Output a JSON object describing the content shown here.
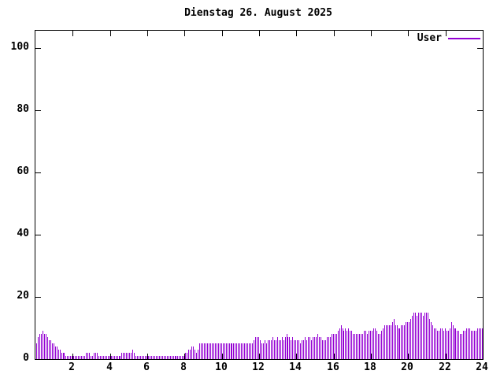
{
  "window": {
    "background": "#ffffff"
  },
  "colors": {
    "axis": "#000000",
    "text": "#000000",
    "bar": "#9400d3"
  },
  "chart_data": {
    "type": "bar",
    "style": "impulses",
    "title": "Dienstag 26. August 2025",
    "xlabel": "",
    "ylabel": "",
    "grid": false,
    "legend_position": "top-right-inside",
    "x": {
      "unit": "hour",
      "min": 0,
      "max": 24,
      "ticks": [
        2,
        4,
        6,
        8,
        10,
        12,
        14,
        16,
        18,
        20,
        22,
        24
      ]
    },
    "y": {
      "min": 0,
      "max": 105.6,
      "ticks": [
        0,
        20,
        40,
        60,
        80,
        100
      ]
    },
    "interval_minutes": 5,
    "series": [
      {
        "name": "User",
        "color": "#9400d3",
        "values": [
          5,
          7,
          8,
          8,
          9,
          8,
          8,
          7,
          6,
          6,
          5,
          5,
          4,
          4,
          3,
          3,
          2,
          2,
          2,
          1,
          1,
          1,
          1,
          1,
          1,
          1,
          1,
          1,
          1,
          1,
          1,
          1,
          2,
          2,
          2,
          1,
          1,
          2,
          2,
          2,
          1,
          1,
          1,
          1,
          1,
          1,
          1,
          1,
          1,
          1,
          1,
          1,
          1,
          1,
          1,
          2,
          2,
          2,
          2,
          2,
          2,
          2,
          3,
          2,
          1,
          1,
          1,
          1,
          1,
          1,
          1,
          1,
          1,
          1,
          1,
          1,
          1,
          1,
          1,
          1,
          1,
          1,
          1,
          1,
          1,
          1,
          1,
          1,
          1,
          1,
          1,
          1,
          1,
          1,
          1,
          1,
          2,
          2,
          3,
          3,
          4,
          4,
          3,
          2,
          3,
          5,
          5,
          5,
          5,
          5,
          5,
          5,
          5,
          5,
          5,
          5,
          5,
          5,
          5,
          5,
          5,
          5,
          5,
          5,
          5,
          5,
          5,
          5,
          5,
          5,
          5,
          5,
          5,
          5,
          5,
          5,
          5,
          5,
          5,
          5,
          6,
          7,
          7,
          7,
          6,
          5,
          5,
          6,
          5,
          6,
          6,
          6,
          7,
          6,
          6,
          7,
          6,
          6,
          7,
          6,
          7,
          8,
          7,
          7,
          6,
          7,
          6,
          6,
          6,
          6,
          5,
          6,
          6,
          7,
          6,
          7,
          7,
          6,
          7,
          7,
          7,
          8,
          7,
          7,
          6,
          6,
          6,
          7,
          7,
          7,
          8,
          8,
          8,
          8,
          9,
          10,
          11,
          10,
          9,
          10,
          9,
          10,
          9,
          9,
          8,
          8,
          8,
          8,
          8,
          8,
          8,
          9,
          9,
          8,
          9,
          9,
          9,
          10,
          10,
          9,
          8,
          8,
          9,
          10,
          11,
          11,
          11,
          11,
          11,
          12,
          13,
          11,
          11,
          10,
          10,
          11,
          11,
          11,
          12,
          12,
          12,
          13,
          14,
          15,
          15,
          14,
          15,
          15,
          15,
          14,
          15,
          15,
          15,
          13,
          12,
          11,
          10,
          10,
          9,
          9,
          10,
          10,
          9,
          10,
          9,
          9,
          10,
          12,
          11,
          10,
          10,
          9,
          9,
          8,
          8,
          9,
          9,
          10,
          10,
          10,
          9,
          9,
          9,
          9,
          10,
          10,
          10,
          10
        ]
      }
    ]
  }
}
